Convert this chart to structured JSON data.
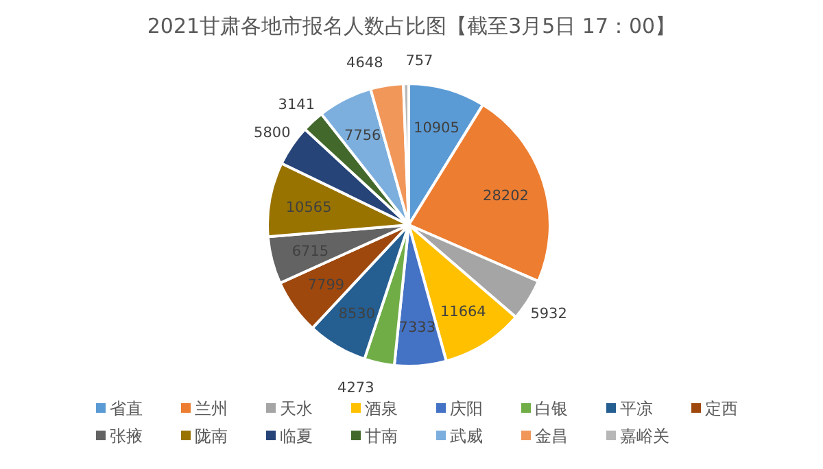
{
  "chart_data": {
    "type": "pie",
    "title": "2021甘肃各地市报名人数占比图【截至3月5日 17：00】",
    "categories": [
      "省直",
      "兰州",
      "天水",
      "酒泉",
      "庆阳",
      "白银",
      "平凉",
      "定西",
      "张掖",
      "陇南",
      "临夏",
      "甘南",
      "武威",
      "金昌",
      "嘉峪关"
    ],
    "values": [
      10905,
      28202,
      5932,
      11664,
      7333,
      4273,
      8530,
      7799,
      6715,
      10565,
      5800,
      3141,
      7756,
      4648,
      757
    ],
    "colors": [
      "#5b9bd5",
      "#ed7d31",
      "#a5a5a5",
      "#ffc000",
      "#4472c4",
      "#70ad47",
      "#255e91",
      "#9e480e",
      "#636363",
      "#997300",
      "#264478",
      "#43682b",
      "#7cafdd",
      "#f1975a",
      "#b7b7b7"
    ],
    "data_labels": true,
    "legend": "bottom"
  }
}
